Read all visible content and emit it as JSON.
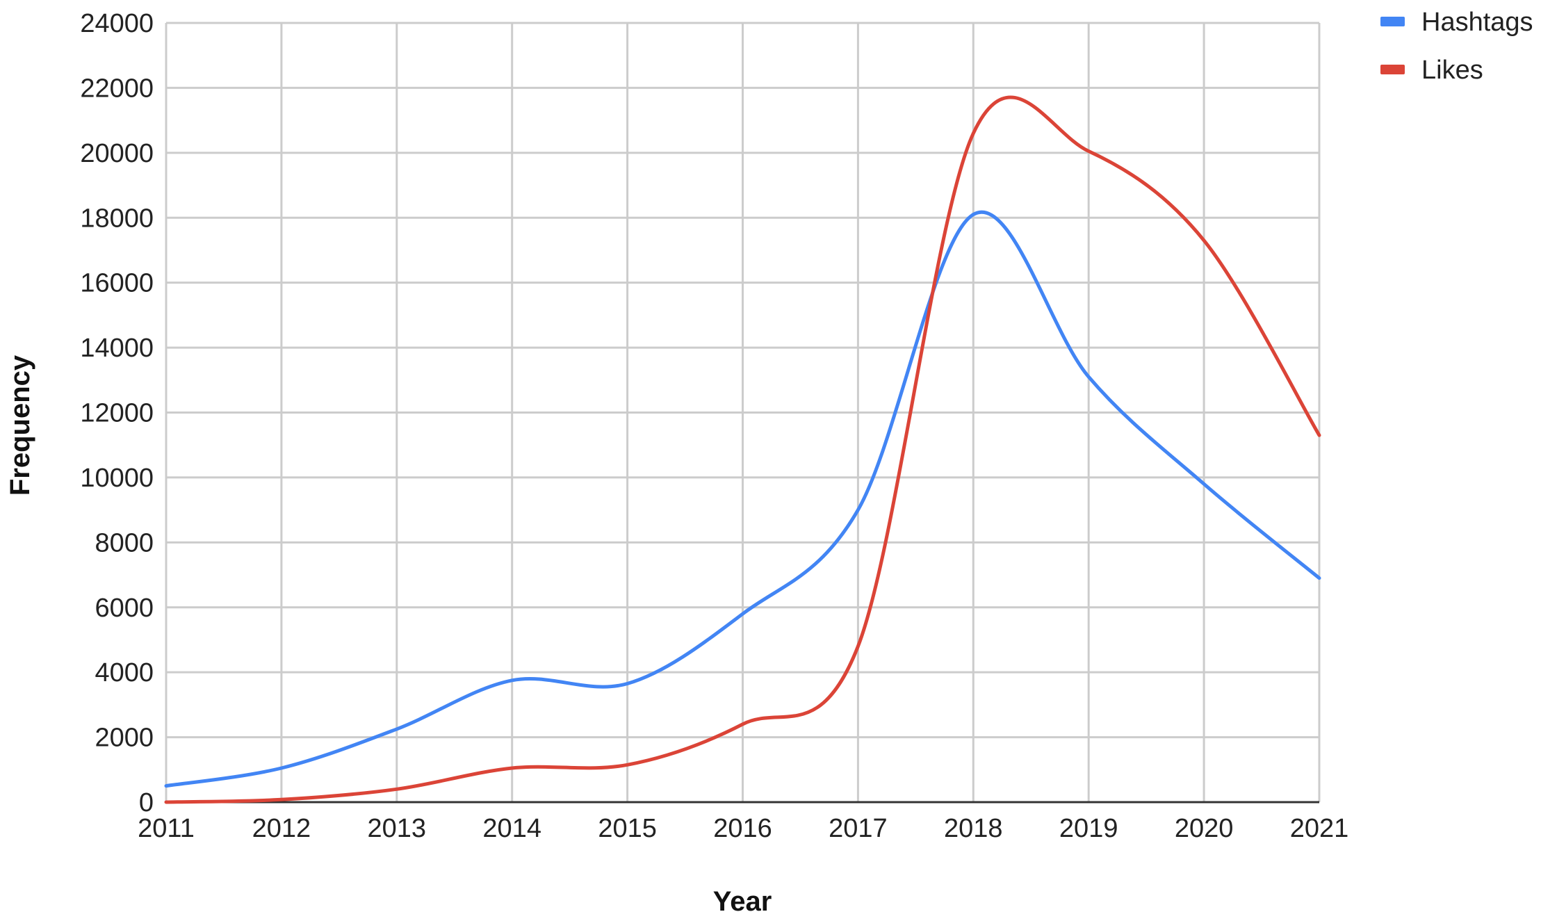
{
  "chart_data": {
    "type": "line",
    "title": "",
    "xlabel": "Year",
    "ylabel": "Frequency",
    "x": [
      2011,
      2012,
      2013,
      2014,
      2015,
      2016,
      2017,
      2018,
      2019,
      2020,
      2021
    ],
    "x_ticks": [
      "2011",
      "2012",
      "2013",
      "2014",
      "2015",
      "2016",
      "2017",
      "2018",
      "2019",
      "2020",
      "2021"
    ],
    "ylim": [
      0,
      24000
    ],
    "y_ticks": [
      "0",
      "2000",
      "4000",
      "6000",
      "8000",
      "10000",
      "12000",
      "14000",
      "16000",
      "18000",
      "20000",
      "22000",
      "24000"
    ],
    "grid": true,
    "legend_position": "top-right",
    "series": [
      {
        "name": "Hashtags",
        "color": "#4285f4",
        "values": [
          500,
          1050,
          2250,
          3750,
          3650,
          5800,
          9000,
          18100,
          13100,
          9800,
          6900
        ]
      },
      {
        "name": "Likes",
        "color": "#db4437",
        "values": [
          0,
          80,
          400,
          1050,
          1150,
          2400,
          4800,
          20600,
          20050,
          17300,
          11300
        ]
      }
    ]
  }
}
